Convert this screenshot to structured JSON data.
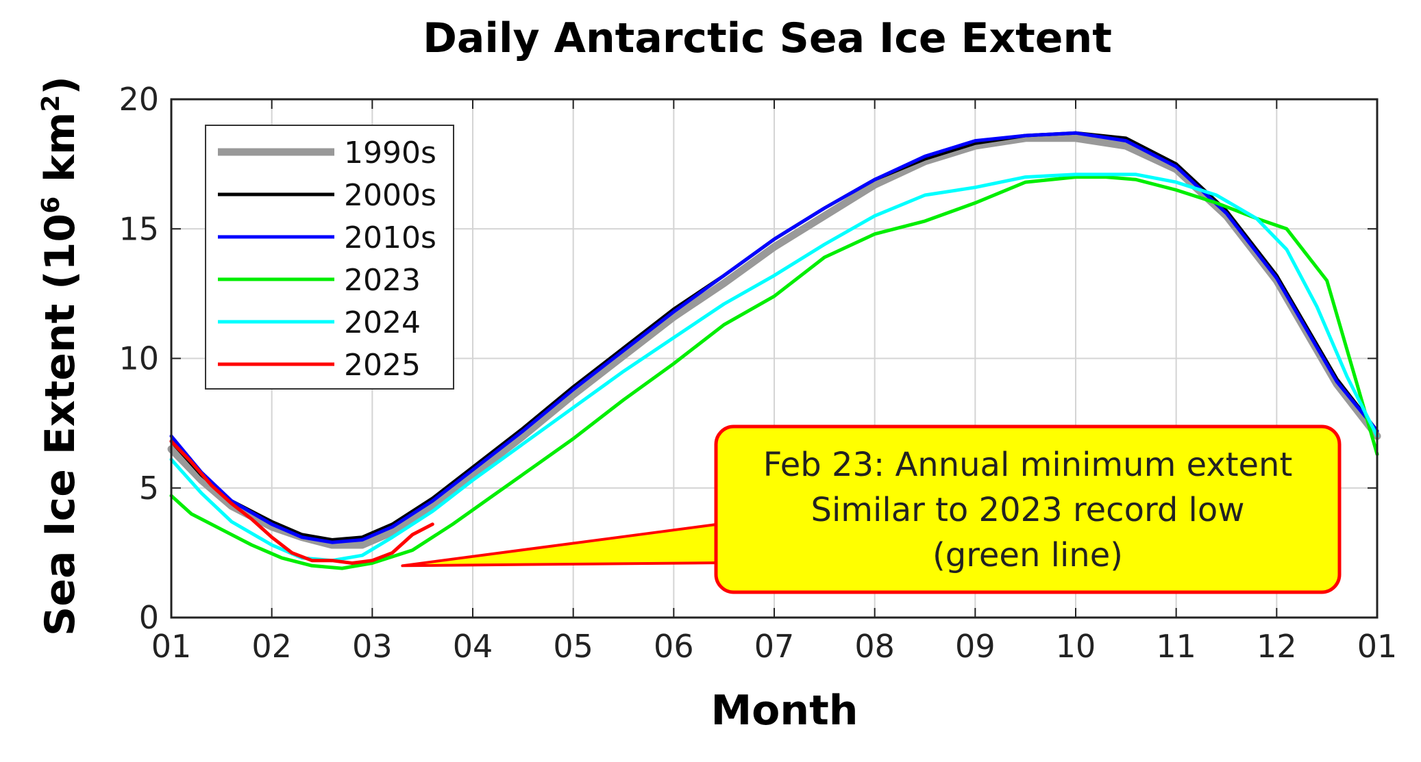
{
  "chart_data": {
    "type": "line",
    "title": "Daily Antarctic Sea Ice Extent",
    "xlabel": "Month",
    "ylabel": "Sea Ice Extent (10",
    "ylabel_sup": "6",
    "ylabel_unit": " km",
    "ylabel_unit_sup": "2",
    "ylabel_close": ")",
    "xlim": [
      0,
      12
    ],
    "ylim": [
      0,
      20
    ],
    "x_ticks": [
      0,
      1,
      2,
      3,
      4,
      5,
      6,
      7,
      8,
      9,
      10,
      11,
      12
    ],
    "x_tick_labels": [
      "01",
      "02",
      "03",
      "04",
      "05",
      "06",
      "07",
      "08",
      "09",
      "10",
      "11",
      "12",
      "01"
    ],
    "y_ticks": [
      0,
      5,
      10,
      15,
      20
    ],
    "y_tick_labels": [
      "0",
      "5",
      "10",
      "15",
      "20"
    ],
    "grid": true,
    "legend_position": "top-left",
    "series": [
      {
        "name": "1990s",
        "color": "#999999",
        "x": [
          0,
          0.3,
          0.6,
          1.0,
          1.3,
          1.6,
          1.9,
          2.2,
          2.6,
          3.0,
          3.5,
          4.0,
          4.5,
          5.0,
          5.5,
          6.0,
          6.5,
          7.0,
          7.5,
          8.0,
          8.5,
          9.0,
          9.5,
          10.0,
          10.5,
          11.0,
          11.3,
          11.6,
          12.0
        ],
        "y": [
          6.5,
          5.3,
          4.3,
          3.5,
          3.1,
          2.8,
          2.8,
          3.3,
          4.3,
          5.5,
          7.0,
          8.6,
          10.1,
          11.6,
          12.9,
          14.3,
          15.5,
          16.7,
          17.6,
          18.2,
          18.5,
          18.5,
          18.2,
          17.3,
          15.5,
          13.0,
          11.0,
          9.0,
          7.0
        ]
      },
      {
        "name": "2000s",
        "color": "#000000",
        "x": [
          0,
          0.3,
          0.6,
          1.0,
          1.3,
          1.6,
          1.9,
          2.2,
          2.6,
          3.0,
          3.5,
          4.0,
          4.5,
          5.0,
          5.5,
          6.0,
          6.5,
          7.0,
          7.5,
          8.0,
          8.5,
          9.0,
          9.5,
          10.0,
          10.5,
          11.0,
          11.3,
          11.6,
          12.0
        ],
        "y": [
          6.8,
          5.5,
          4.5,
          3.7,
          3.2,
          3.0,
          3.1,
          3.6,
          4.6,
          5.8,
          7.3,
          8.9,
          10.4,
          11.9,
          13.2,
          14.6,
          15.8,
          16.9,
          17.7,
          18.3,
          18.6,
          18.7,
          18.5,
          17.5,
          15.7,
          13.2,
          11.2,
          9.2,
          7.2
        ]
      },
      {
        "name": "2010s",
        "color": "#0000ff",
        "x": [
          0,
          0.3,
          0.6,
          1.0,
          1.3,
          1.6,
          1.9,
          2.2,
          2.6,
          3.0,
          3.5,
          4.0,
          4.5,
          5.0,
          5.5,
          6.0,
          6.5,
          7.0,
          7.5,
          8.0,
          8.5,
          9.0,
          9.5,
          10.0,
          10.5,
          11.0,
          11.3,
          11.6,
          12.0
        ],
        "y": [
          7.0,
          5.6,
          4.5,
          3.6,
          3.1,
          2.9,
          3.0,
          3.5,
          4.5,
          5.7,
          7.2,
          8.8,
          10.3,
          11.8,
          13.2,
          14.6,
          15.8,
          16.9,
          17.8,
          18.4,
          18.6,
          18.7,
          18.4,
          17.4,
          15.6,
          13.1,
          11.1,
          9.1,
          7.2
        ]
      },
      {
        "name": "2023",
        "color": "#00ee00",
        "x": [
          0,
          0.2,
          0.5,
          0.8,
          1.1,
          1.4,
          1.7,
          2.0,
          2.4,
          2.8,
          3.2,
          3.6,
          4.0,
          4.5,
          5.0,
          5.5,
          6.0,
          6.5,
          7.0,
          7.5,
          8.0,
          8.5,
          9.0,
          9.3,
          9.6,
          10.0,
          10.4,
          10.8,
          11.1,
          11.5,
          11.8,
          12.0
        ],
        "y": [
          4.7,
          4.0,
          3.4,
          2.8,
          2.3,
          2.0,
          1.9,
          2.1,
          2.6,
          3.6,
          4.7,
          5.8,
          6.9,
          8.4,
          9.8,
          11.3,
          12.4,
          13.9,
          14.8,
          15.3,
          16.0,
          16.8,
          17.0,
          17.0,
          16.9,
          16.5,
          16.0,
          15.4,
          15.0,
          13.0,
          9.0,
          6.3
        ]
      },
      {
        "name": "2024",
        "color": "#00ffff",
        "x": [
          0,
          0.3,
          0.6,
          1.0,
          1.3,
          1.6,
          1.9,
          2.2,
          2.6,
          3.0,
          3.5,
          4.0,
          4.5,
          5.0,
          5.5,
          6.0,
          6.5,
          7.0,
          7.5,
          8.0,
          8.5,
          9.0,
          9.3,
          9.6,
          10.0,
          10.4,
          10.8,
          11.1,
          11.4,
          11.7,
          12.0
        ],
        "y": [
          6.1,
          4.8,
          3.7,
          2.8,
          2.3,
          2.2,
          2.4,
          3.1,
          4.1,
          5.3,
          6.7,
          8.1,
          9.5,
          10.8,
          12.1,
          13.2,
          14.4,
          15.5,
          16.3,
          16.6,
          17.0,
          17.1,
          17.1,
          17.1,
          16.8,
          16.3,
          15.4,
          14.2,
          12.0,
          9.3,
          7.0
        ]
      },
      {
        "name": "2025",
        "color": "#ff0000",
        "x": [
          0,
          0.2,
          0.4,
          0.6,
          0.8,
          1.0,
          1.2,
          1.4,
          1.6,
          1.8,
          2.0,
          2.2,
          2.4,
          2.6
        ],
        "y": [
          6.8,
          6.0,
          5.1,
          4.4,
          3.8,
          3.1,
          2.5,
          2.2,
          2.2,
          2.1,
          2.2,
          2.5,
          3.2,
          3.6
        ]
      }
    ],
    "annotation": {
      "lines": [
        "Feb 23: Annual minimum extent",
        "Similar to 2023 record low",
        "(green line)"
      ],
      "fill": "#ffff00",
      "border": "#ff0000",
      "pointer_x": 2.3,
      "pointer_y": 2.0
    }
  }
}
